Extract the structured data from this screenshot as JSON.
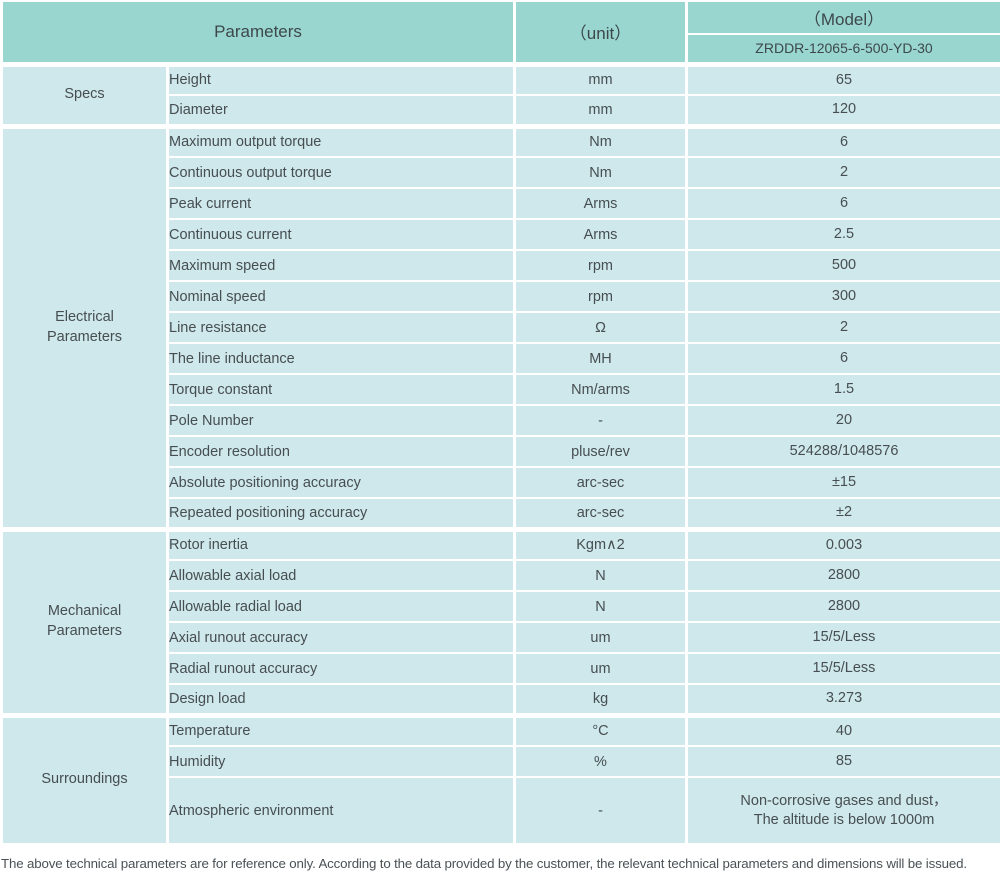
{
  "colors": {
    "header_bg": "#99d6d0",
    "row_bg": "#cee8ec",
    "border": "#ffffff",
    "text": "#474e51",
    "header_text": "#3d484b"
  },
  "table": {
    "header": {
      "parameters_label": "Parameters",
      "unit_label": "（unit）",
      "model_label": "（Model）",
      "model_value": "ZRDDR-12065-6-500-YD-30"
    },
    "sections": [
      {
        "name": "Specs",
        "rows": [
          {
            "parameter": "Height",
            "unit": "mm",
            "value": "65"
          },
          {
            "parameter": "Diameter",
            "unit": "mm",
            "value": "120"
          }
        ]
      },
      {
        "name": "Electrical\nParameters",
        "rows": [
          {
            "parameter": "Maximum output torque",
            "unit": "Nm",
            "value": "6"
          },
          {
            "parameter": "Continuous output torque",
            "unit": "Nm",
            "value": "2"
          },
          {
            "parameter": "Peak current",
            "unit": "Arms",
            "value": "6"
          },
          {
            "parameter": "Continuous current",
            "unit": "Arms",
            "value": "2.5"
          },
          {
            "parameter": "Maximum speed",
            "unit": "rpm",
            "value": "500"
          },
          {
            "parameter": "Nominal speed",
            "unit": "rpm",
            "value": "300"
          },
          {
            "parameter": "Line resistance",
            "unit": "Ω",
            "value": "2"
          },
          {
            "parameter": "The line inductance",
            "unit": "MH",
            "value": "6"
          },
          {
            "parameter": "Torque constant",
            "unit": "Nm/arms",
            "value": "1.5"
          },
          {
            "parameter": "Pole Number",
            "unit": "-",
            "value": "20"
          },
          {
            "parameter": "Encoder resolution",
            "unit": "pluse/rev",
            "value": "524288/1048576"
          },
          {
            "parameter": "Absolute positioning accuracy",
            "unit": "arc-sec",
            "value": "±15"
          },
          {
            "parameter": "Repeated positioning accuracy",
            "unit": "arc-sec",
            "value": "±2"
          }
        ]
      },
      {
        "name": "Mechanical\nParameters",
        "rows": [
          {
            "parameter": "Rotor inertia",
            "unit": "Kgm∧2",
            "value": "0.003"
          },
          {
            "parameter": "Allowable axial load",
            "unit": "N",
            "value": "2800"
          },
          {
            "parameter": "Allowable radial load",
            "unit": "N",
            "value": "2800"
          },
          {
            "parameter": "Axial runout accuracy",
            "unit": "um",
            "value": "15/5/Less"
          },
          {
            "parameter": "Radial runout accuracy",
            "unit": "um",
            "value": "15/5/Less"
          },
          {
            "parameter": "Design load",
            "unit": "kg",
            "value": "3.273"
          }
        ]
      },
      {
        "name": "Surroundings",
        "rows": [
          {
            "parameter": "Temperature",
            "unit": "°C",
            "value": "40"
          },
          {
            "parameter": "Humidity",
            "unit": "%",
            "value": "85"
          },
          {
            "parameter": "Atmospheric environment",
            "unit": "-",
            "value": "Non-corrosive gases and dust，\nThe altitude is below 1000m",
            "tall": true
          }
        ]
      }
    ]
  },
  "footnote": "The above technical parameters are for reference only. According to the data provided by the customer, the relevant technical parameters and dimensions will be issued."
}
